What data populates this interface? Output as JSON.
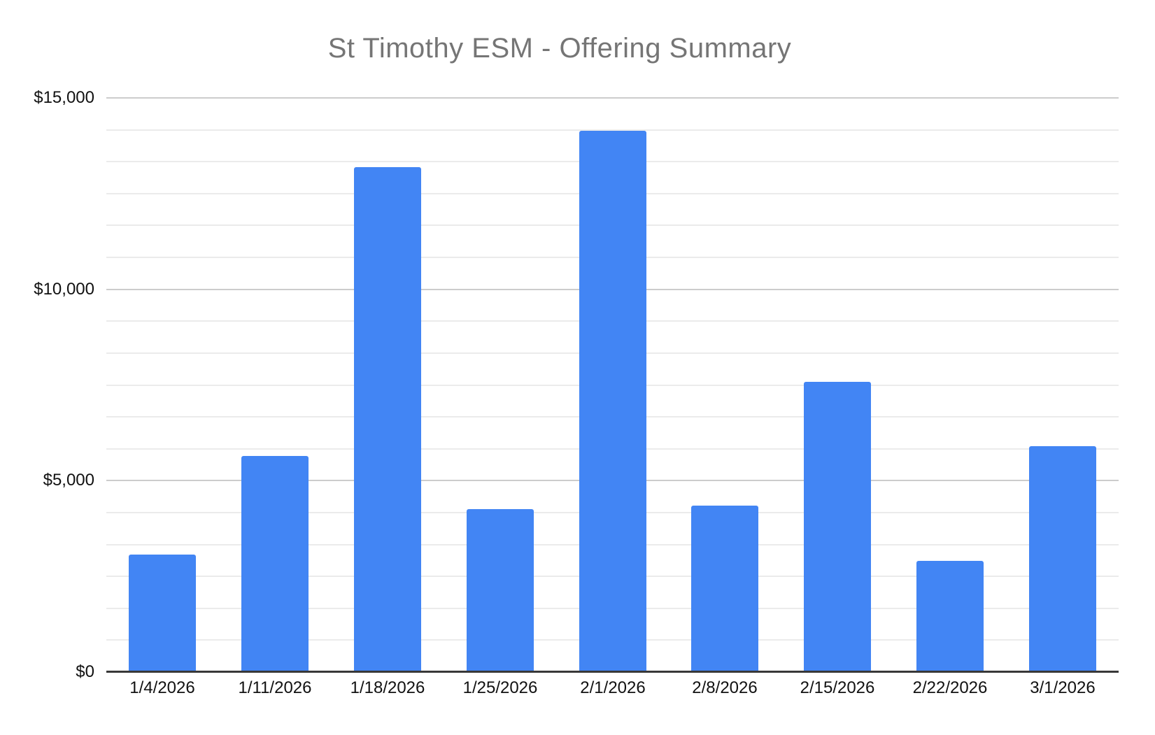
{
  "title": "St Timothy ESM - Offering Summary",
  "colors": {
    "bar": "#4285f4",
    "title_text": "#757575",
    "axis_text": "#111111",
    "major_gridline": "#cccccc",
    "minor_gridline": "#ebebeb",
    "baseline": "#383838",
    "background": "#ffffff"
  },
  "chart_data": {
    "type": "bar",
    "title": "St Timothy ESM - Offering Summary",
    "categories": [
      "1/4/2026",
      "1/11/2026",
      "1/18/2026",
      "1/25/2026",
      "2/1/2026",
      "2/8/2026",
      "2/15/2026",
      "2/22/2026",
      "3/1/2026"
    ],
    "values": [
      3070,
      5640,
      13190,
      4260,
      14150,
      4350,
      7580,
      2900,
      5900
    ],
    "xlabel": "",
    "ylabel": "",
    "ylim": [
      0,
      15000
    ],
    "y_major_tick_labels": [
      "$0",
      "$5,000",
      "$10,000",
      "$15,000"
    ],
    "y_major_step": 5000,
    "y_minor_divisions_per_major": 6,
    "grid": "horizontal major + minor",
    "legend": "none",
    "bar_color": "#4285f4"
  }
}
